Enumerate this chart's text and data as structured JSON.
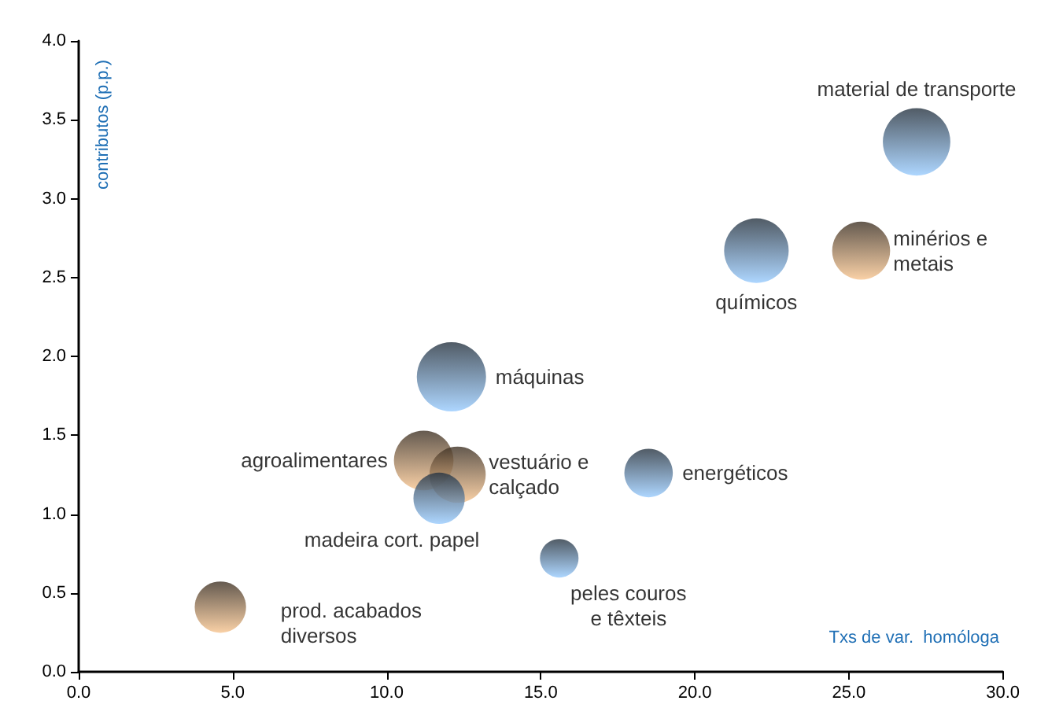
{
  "chart_data": {
    "type": "bubble",
    "xlabel": "Txs de var.  homóloga",
    "ylabel": "contributos (p.p.)",
    "x": [
      27.2,
      22.0,
      25.4,
      12.1,
      11.2,
      12.3,
      11.7,
      18.5,
      15.6,
      4.6
    ],
    "values": [
      3.36,
      2.67,
      2.67,
      1.87,
      1.34,
      1.25,
      1.1,
      1.26,
      0.72,
      0.41
    ],
    "sizes": [
      0.95,
      0.87,
      0.7,
      1,
      0.74,
      0.66,
      0.55,
      0.49,
      0.31,
      0.55
    ],
    "colors": [
      "#99ccff",
      "#99ccff",
      "#f8c590",
      "#99ccff",
      "#f8c590",
      "#f8c590",
      "#99ccff",
      "#99ccff",
      "#99ccff",
      "#f8c590"
    ],
    "annotations": [
      {
        "text": "material de transporte",
        "x": 27.2,
        "y": 3.36
      },
      {
        "text": "químicos",
        "x": 22.0,
        "y": 2.67
      },
      {
        "text": "minérios e\nmetais",
        "x": 25.4,
        "y": 2.67
      },
      {
        "text": "máquinas",
        "x": 12.1,
        "y": 1.87
      },
      {
        "text": "agroalimentares",
        "x": 11.2,
        "y": 1.34
      },
      {
        "text": "vestuário e\ncalçado",
        "x": 12.3,
        "y": 1.25
      },
      {
        "text": "madeira cort. papel",
        "x": 11.7,
        "y": 1.1
      },
      {
        "text": "energéticos",
        "x": 18.5,
        "y": 1.26
      },
      {
        "text": "peles couros\ne têxteis",
        "x": 15.6,
        "y": 0.72
      },
      {
        "text": "prod. acabados\ndiversos",
        "x": 4.6,
        "y": 0.41
      }
    ],
    "xlim": [
      0,
      30
    ],
    "ylim": [
      0,
      4
    ],
    "xticks": [
      {
        "value": 0,
        "label": "0.0"
      },
      {
        "value": 5,
        "label": "5.0"
      },
      {
        "value": 10,
        "label": "10.0"
      },
      {
        "value": 15,
        "label": "15.0"
      },
      {
        "value": 20,
        "label": "20.0"
      },
      {
        "value": 25,
        "label": "25.0"
      },
      {
        "value": 30,
        "label": "30.0"
      }
    ],
    "yticks": [
      {
        "value": 0,
        "label": "0.0"
      },
      {
        "value": 0.5,
        "label": "0.5"
      },
      {
        "value": 1,
        "label": "1.0"
      },
      {
        "value": 1.5,
        "label": "1.5"
      },
      {
        "value": 2,
        "label": "2.0"
      },
      {
        "value": 2.5,
        "label": "2.5"
      },
      {
        "value": 3,
        "label": "3.0"
      },
      {
        "value": 3.5,
        "label": "3.5"
      },
      {
        "value": 4,
        "label": "4.0"
      }
    ],
    "grid": false
  }
}
